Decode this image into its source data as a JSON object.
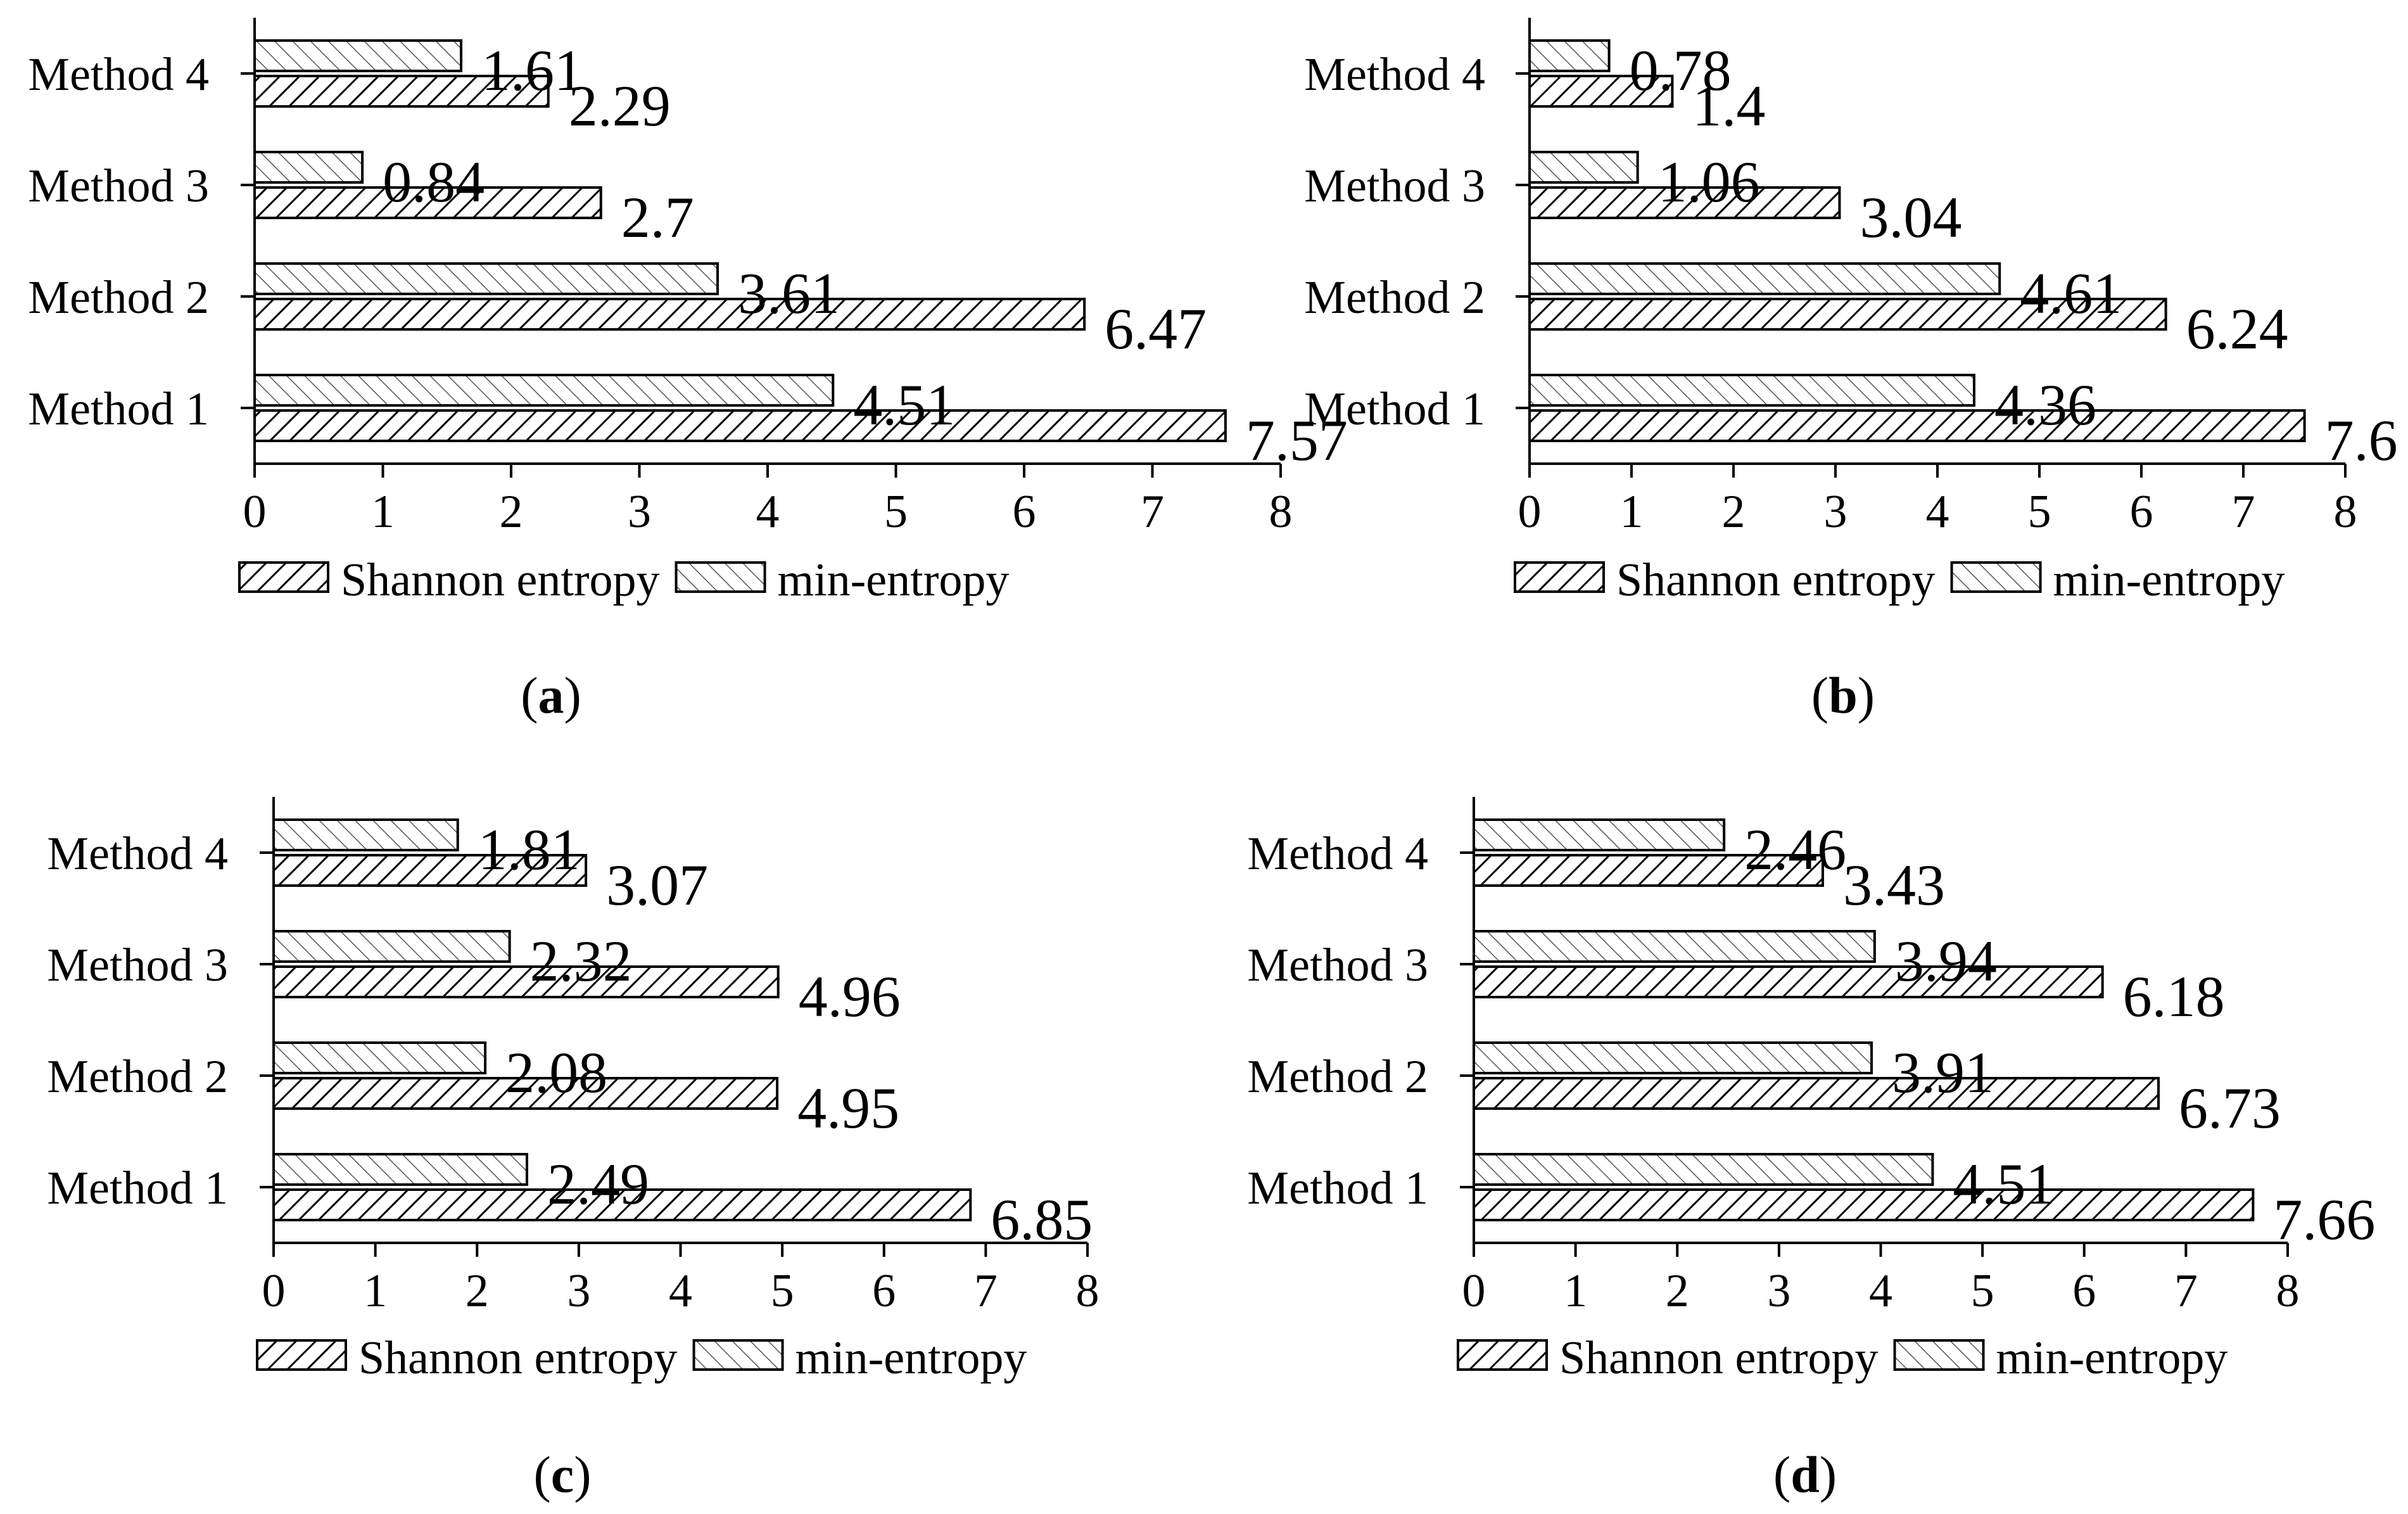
{
  "series_names": [
    "Shannon entropy",
    "min-entropy"
  ],
  "chart_data": [
    {
      "type": "bar",
      "orientation": "horizontal",
      "caption": "a",
      "categories": [
        "Method 1",
        "Method 2",
        "Method 3",
        "Method 4"
      ],
      "series": [
        {
          "name": "Shannon entropy",
          "values": [
            7.57,
            6.47,
            2.7,
            2.29
          ]
        },
        {
          "name": "min-entropy",
          "values": [
            4.51,
            3.61,
            0.84,
            1.61
          ]
        }
      ],
      "xlim": [
        0,
        8
      ],
      "xticks": [
        "0",
        "1",
        "2",
        "3",
        "4",
        "5",
        "6",
        "7",
        "8"
      ],
      "legend": "bottom"
    },
    {
      "type": "bar",
      "orientation": "horizontal",
      "caption": "b",
      "categories": [
        "Method 1",
        "Method 2",
        "Method 3",
        "Method 4"
      ],
      "series": [
        {
          "name": "Shannon entropy",
          "values": [
            7.6,
            6.24,
            3.04,
            1.4
          ]
        },
        {
          "name": "min-entropy",
          "values": [
            4.36,
            4.61,
            1.06,
            0.78
          ]
        }
      ],
      "xlim": [
        0,
        8
      ],
      "xticks": [
        "0",
        "1",
        "2",
        "3",
        "4",
        "5",
        "6",
        "7",
        "8"
      ],
      "legend": "bottom"
    },
    {
      "type": "bar",
      "orientation": "horizontal",
      "caption": "c",
      "categories": [
        "Method 1",
        "Method 2",
        "Method 3",
        "Method 4"
      ],
      "series": [
        {
          "name": "Shannon entropy",
          "values": [
            6.85,
            4.95,
            4.96,
            3.07
          ]
        },
        {
          "name": "min-entropy",
          "values": [
            2.49,
            2.08,
            2.32,
            1.81
          ]
        }
      ],
      "xlim": [
        0,
        8
      ],
      "xticks": [
        "0",
        "1",
        "2",
        "3",
        "4",
        "5",
        "6",
        "7",
        "8"
      ],
      "legend": "bottom"
    },
    {
      "type": "bar",
      "orientation": "horizontal",
      "caption": "d",
      "categories": [
        "Method 1",
        "Method 2",
        "Method 3",
        "Method 4"
      ],
      "series": [
        {
          "name": "Shannon entropy",
          "values": [
            7.66,
            6.73,
            6.18,
            3.43
          ]
        },
        {
          "name": "min-entropy",
          "values": [
            4.51,
            3.91,
            3.94,
            2.46
          ]
        }
      ],
      "xlim": [
        0,
        8
      ],
      "xticks": [
        "0",
        "1",
        "2",
        "3",
        "4",
        "5",
        "6",
        "7",
        "8"
      ],
      "legend": "bottom"
    }
  ]
}
